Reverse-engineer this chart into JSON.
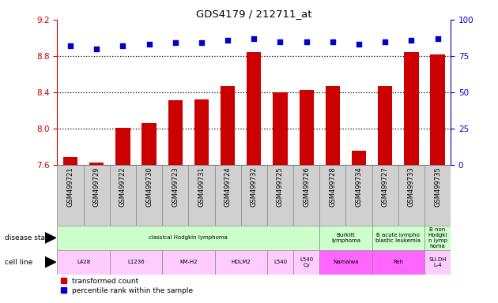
{
  "title": "GDS4179 / 212711_at",
  "samples": [
    "GSM499721",
    "GSM499729",
    "GSM499722",
    "GSM499730",
    "GSM499723",
    "GSM499731",
    "GSM499724",
    "GSM499732",
    "GSM499725",
    "GSM499726",
    "GSM499728",
    "GSM499734",
    "GSM499727",
    "GSM499733",
    "GSM499735"
  ],
  "transformed_count": [
    7.69,
    7.63,
    8.01,
    8.06,
    8.31,
    8.32,
    8.47,
    8.84,
    8.4,
    8.43,
    8.47,
    7.76,
    8.47,
    8.84,
    8.82
  ],
  "percentile_rank": [
    82,
    80,
    82,
    83,
    84,
    84,
    86,
    87,
    85,
    85,
    85,
    83,
    85,
    86,
    87
  ],
  "ylim_left": [
    7.6,
    9.2
  ],
  "ylim_right": [
    0,
    100
  ],
  "yticks_left": [
    7.6,
    8.0,
    8.4,
    8.8,
    9.2
  ],
  "yticks_right": [
    0,
    25,
    50,
    75,
    100
  ],
  "bar_color": "#cc0000",
  "dot_color": "#0000cc",
  "gridline_y": [
    8.0,
    8.4,
    8.8
  ],
  "disease_regions": [
    {
      "label": "classical Hodgkin lymphoma",
      "start": 0,
      "end": 10,
      "color": "#ccffcc"
    },
    {
      "label": "Burkitt\nlymphoma",
      "start": 10,
      "end": 12,
      "color": "#ccffcc"
    },
    {
      "label": "B acute lympho\nblastic leukemia",
      "start": 12,
      "end": 14,
      "color": "#ccffcc"
    },
    {
      "label": "B non\nHodgki\nn lymp\nhoma",
      "start": 14,
      "end": 15,
      "color": "#ccffcc"
    }
  ],
  "cell_lines": [
    {
      "label": "L428",
      "start": 0,
      "end": 2,
      "color": "#ffccff"
    },
    {
      "label": "L1236",
      "start": 2,
      "end": 4,
      "color": "#ffccff"
    },
    {
      "label": "KM-H2",
      "start": 4,
      "end": 6,
      "color": "#ffccff"
    },
    {
      "label": "HDLM2",
      "start": 6,
      "end": 8,
      "color": "#ffccff"
    },
    {
      "label": "L540",
      "start": 8,
      "end": 9,
      "color": "#ffccff"
    },
    {
      "label": "L540\nCy",
      "start": 9,
      "end": 10,
      "color": "#ffccff"
    },
    {
      "label": "Namalwa",
      "start": 10,
      "end": 12,
      "color": "#ff66ff"
    },
    {
      "label": "Reh",
      "start": 12,
      "end": 14,
      "color": "#ff66ff"
    },
    {
      "label": "SU-DH\nL-4",
      "start": 14,
      "end": 15,
      "color": "#ffccff"
    }
  ],
  "left_axis_color": "#cc0000",
  "right_axis_color": "#0000cc",
  "sample_box_color": "#d0d0d0",
  "bg_color": "#ffffff"
}
